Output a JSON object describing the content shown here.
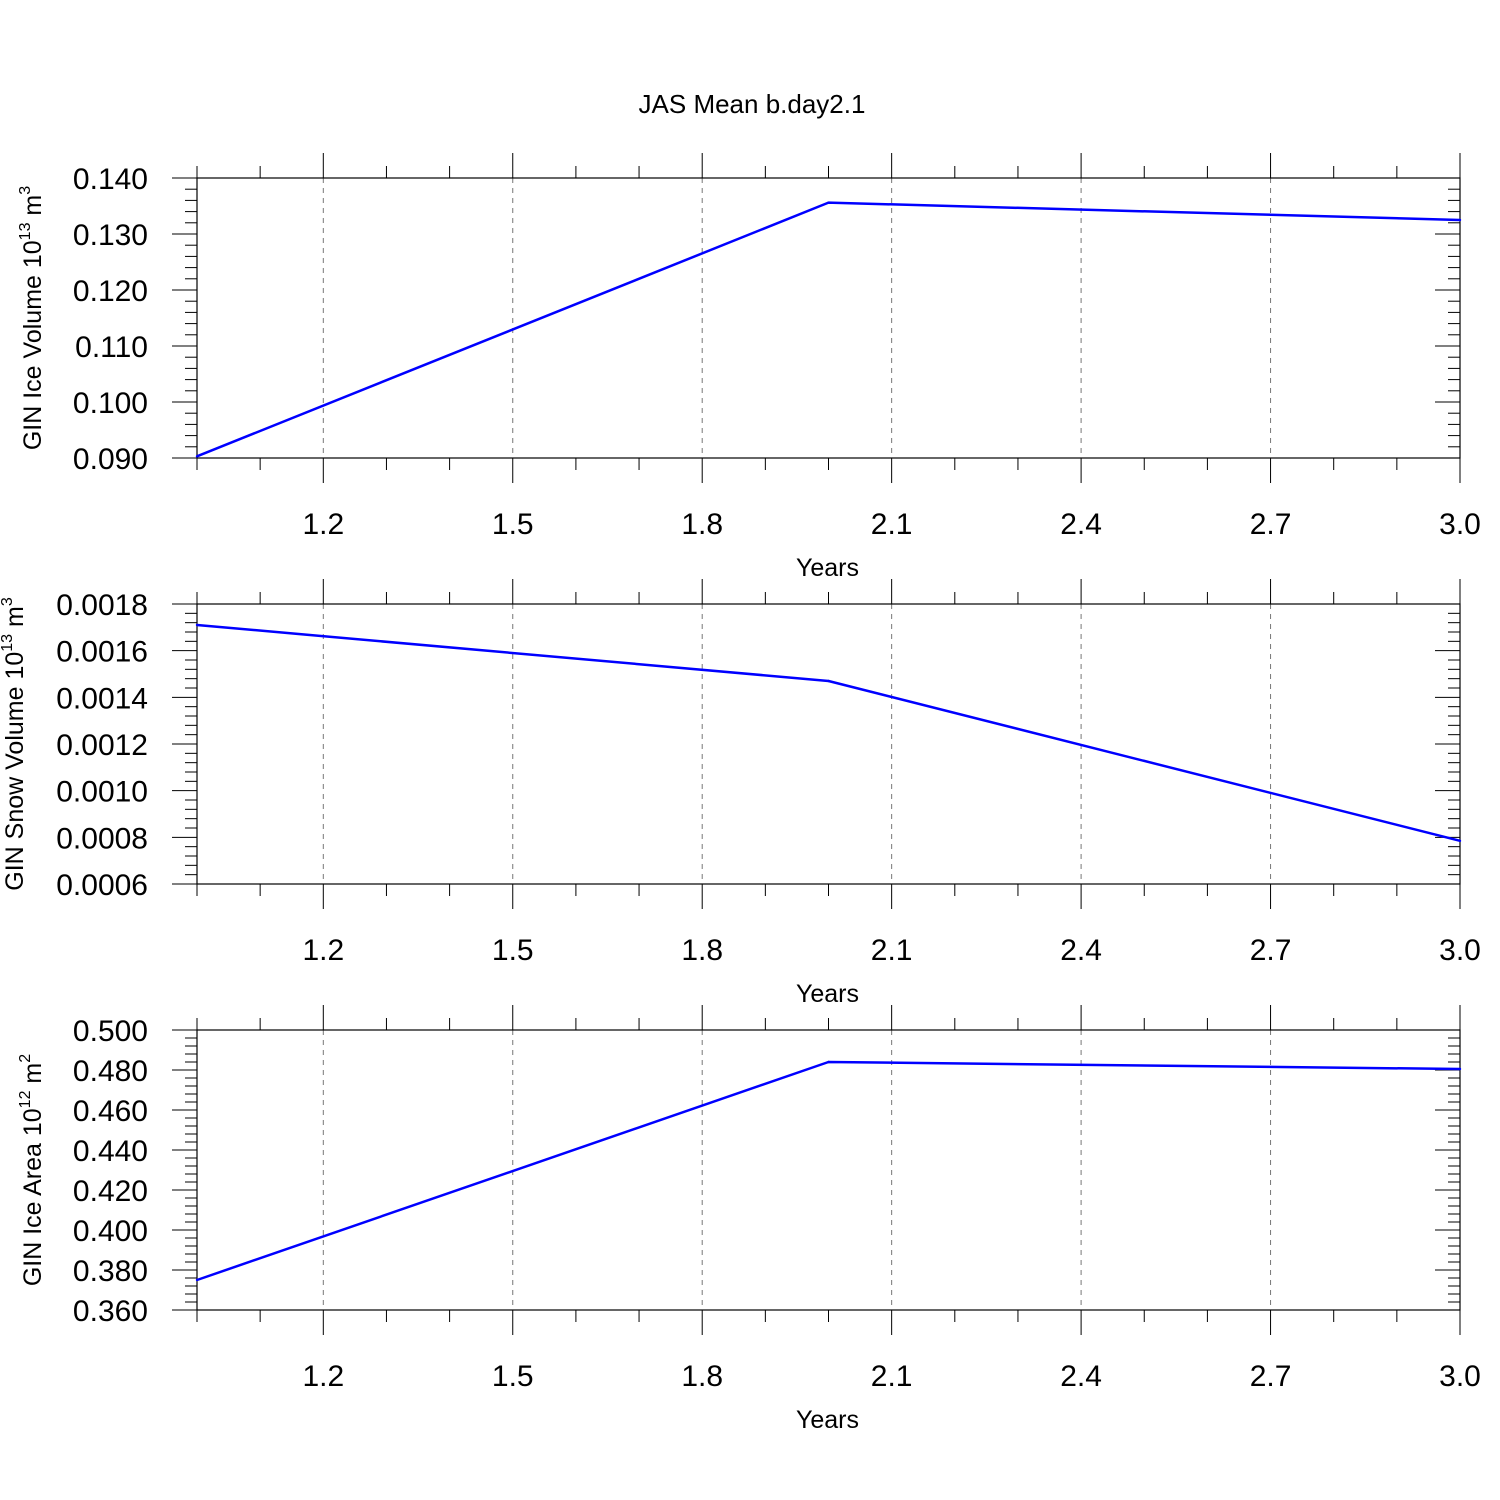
{
  "figure": {
    "title": "JAS Mean b.day2.1",
    "line_color": "#0000ff"
  },
  "chart_data": [
    {
      "type": "line",
      "title": "JAS Mean b.day2.1",
      "ylabel": {
        "text": "GIN Ice Volume 10",
        "exp": "13",
        "unit": " m",
        "unit_exp": "3"
      },
      "xlabel": "Years",
      "x": [
        1.0,
        2.0,
        3.0
      ],
      "y": [
        0.0903,
        0.1356,
        0.1325
      ],
      "xlim": [
        1.0,
        3.0
      ],
      "ylim": [
        0.09,
        0.14
      ],
      "x_ticks": [
        1.2,
        1.5,
        1.8,
        2.1,
        2.4,
        2.7,
        3.0
      ],
      "x_tick_labels": [
        "1.2",
        "1.5",
        "1.8",
        "2.1",
        "2.4",
        "2.7",
        "3.0"
      ],
      "y_ticks": [
        0.09,
        0.1,
        0.11,
        0.12,
        0.13,
        0.14
      ],
      "y_tick_labels": [
        "0.090",
        "0.100",
        "0.110",
        "0.120",
        "0.130",
        "0.140"
      ],
      "y_minor_step": 0.002,
      "x_minor_step": 0.1,
      "grid": "x dashed"
    },
    {
      "type": "line",
      "ylabel": {
        "text": "GIN Snow Volume 10",
        "exp": "13",
        "unit": " m",
        "unit_exp": "3"
      },
      "xlabel": "Years",
      "x": [
        1.0,
        2.0,
        3.0
      ],
      "y": [
        0.00171,
        0.00147,
        0.000785
      ],
      "xlim": [
        1.0,
        3.0
      ],
      "ylim": [
        0.0006,
        0.0018
      ],
      "x_ticks": [
        1.2,
        1.5,
        1.8,
        2.1,
        2.4,
        2.7,
        3.0
      ],
      "x_tick_labels": [
        "1.2",
        "1.5",
        "1.8",
        "2.1",
        "2.4",
        "2.7",
        "3.0"
      ],
      "y_ticks": [
        0.0006,
        0.0008,
        0.001,
        0.0012,
        0.0014,
        0.0016,
        0.0018
      ],
      "y_tick_labels": [
        "0.0006",
        "0.0008",
        "0.0010",
        "0.0012",
        "0.0014",
        "0.0016",
        "0.0018"
      ],
      "y_minor_step": 4e-05,
      "x_minor_step": 0.1,
      "grid": "x dashed"
    },
    {
      "type": "line",
      "ylabel": {
        "text": "GIN Ice Area 10",
        "exp": "12",
        "unit": " m",
        "unit_exp": "2"
      },
      "xlabel": "Years",
      "x": [
        1.0,
        2.0,
        3.0
      ],
      "y": [
        0.375,
        0.484,
        0.4805
      ],
      "xlim": [
        1.0,
        3.0
      ],
      "ylim": [
        0.36,
        0.5
      ],
      "x_ticks": [
        1.2,
        1.5,
        1.8,
        2.1,
        2.4,
        2.7,
        3.0
      ],
      "x_tick_labels": [
        "1.2",
        "1.5",
        "1.8",
        "2.1",
        "2.4",
        "2.7",
        "3.0"
      ],
      "y_ticks": [
        0.36,
        0.38,
        0.4,
        0.42,
        0.44,
        0.46,
        0.48,
        0.5
      ],
      "y_tick_labels": [
        "0.360",
        "0.380",
        "0.400",
        "0.420",
        "0.440",
        "0.460",
        "0.480",
        "0.500"
      ],
      "y_minor_step": 0.004,
      "x_minor_step": 0.1,
      "grid": "x dashed"
    }
  ]
}
